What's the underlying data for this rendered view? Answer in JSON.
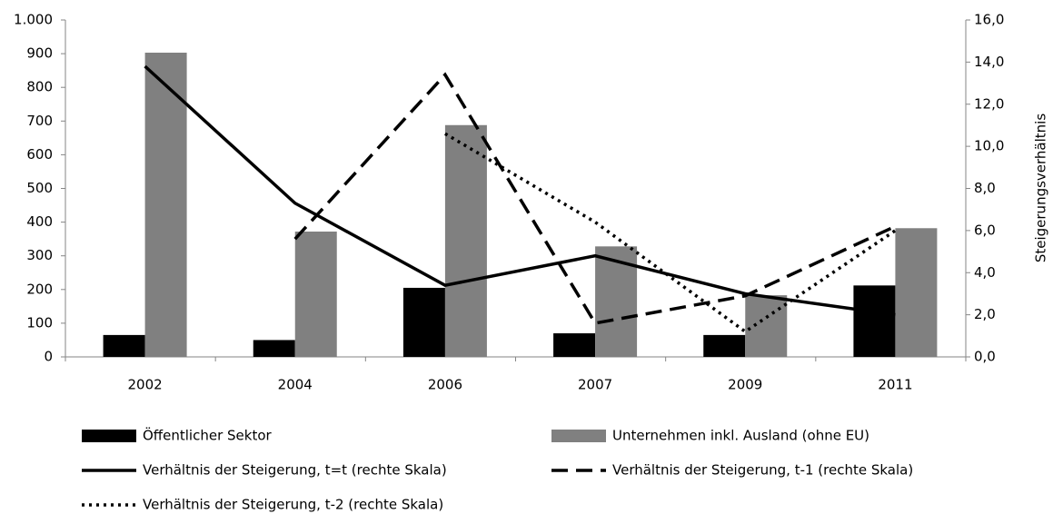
{
  "chart_data": {
    "type": "combo",
    "categories": [
      "2002",
      "2004",
      "2006",
      "2007",
      "2009",
      "2011"
    ],
    "ylim": [
      0,
      1000
    ],
    "yticks": [
      0,
      100,
      200,
      300,
      400,
      500,
      600,
      700,
      800,
      900,
      {
        "value": 1000,
        "label": "1.000"
      }
    ],
    "y2lim": [
      0,
      16
    ],
    "y2ticks": [
      {
        "value": 0,
        "label": "0,0"
      },
      {
        "value": 2,
        "label": "2,0"
      },
      {
        "value": 4,
        "label": "4,0"
      },
      {
        "value": 6,
        "label": "6,0"
      },
      {
        "value": 8,
        "label": "8,0"
      },
      {
        "value": 10,
        "label": "10,0"
      },
      {
        "value": 12,
        "label": "12,0"
      },
      {
        "value": 14,
        "label": "14,0"
      },
      {
        "value": 16,
        "label": "16,0"
      }
    ],
    "y2label": "Steigerungsverhältnis",
    "series": [
      {
        "name": "Öffentlicher Sektor",
        "type": "bar",
        "color": "#000000",
        "values": [
          65,
          50,
          205,
          70,
          65,
          212
        ]
      },
      {
        "name": "Unternehmen inkl. Ausland (ohne EU)",
        "type": "bar",
        "color": "#808080",
        "values": [
          903,
          372,
          688,
          328,
          183,
          382
        ]
      },
      {
        "name": "Verhältnis der Steigerung, t=t (rechte Skala)",
        "type": "line",
        "axis": "y2",
        "color": "#000000",
        "style": "solid",
        "values": [
          13.8,
          7.3,
          3.4,
          4.8,
          3.0,
          2.0
        ]
      },
      {
        "name": "Verhältnis der Steigerung, t-1 (rechte Skala)",
        "type": "line",
        "axis": "y2",
        "color": "#000000",
        "style": "dashed",
        "values": [
          null,
          5.6,
          13.4,
          1.6,
          2.9,
          6.2
        ]
      },
      {
        "name": "Verhältnis der Steigerung, t-2 (rechte Skala)",
        "type": "line",
        "axis": "y2",
        "color": "#000000",
        "style": "dotted",
        "values": [
          null,
          null,
          10.6,
          6.4,
          1.2,
          6.0
        ]
      }
    ]
  }
}
